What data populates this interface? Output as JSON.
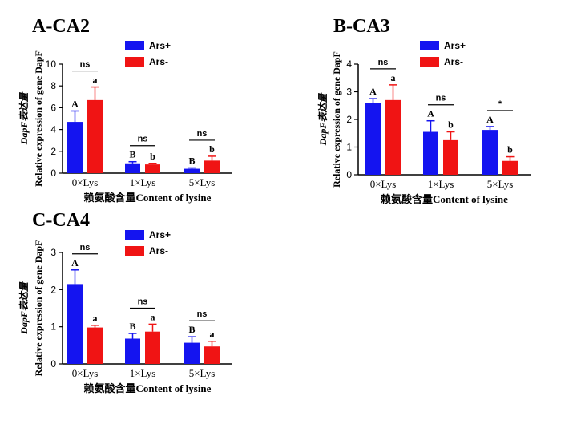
{
  "chart_data": [
    {
      "type": "bar",
      "panel_label": "A-CA2",
      "categories": [
        "0×Lys",
        "1×Lys",
        "5×Lys"
      ],
      "xlabel": "赖氨酸含量Content of lysine",
      "ylabel": "Relative expression of gene DapF",
      "ylabel2": "DapF表达量",
      "ylim": [
        0,
        10
      ],
      "yticks": [
        0,
        2,
        4,
        6,
        8,
        10
      ],
      "legend": "top-right",
      "series": [
        {
          "name": "Ars+",
          "color": "#1414f0",
          "values": [
            4.7,
            0.9,
            0.4
          ],
          "errors": [
            1.0,
            0.15,
            0.08
          ],
          "letters": [
            "A",
            "B",
            "B"
          ]
        },
        {
          "name": "Ars-",
          "color": "#f01414",
          "values": [
            6.7,
            0.8,
            1.15
          ],
          "errors": [
            1.2,
            0.1,
            0.4
          ],
          "letters": [
            "a",
            "b",
            "b"
          ]
        }
      ],
      "significance": [
        "ns",
        "ns",
        "ns"
      ]
    },
    {
      "type": "bar",
      "panel_label": "B-CA3",
      "categories": [
        "0×Lys",
        "1×Lys",
        "5×Lys"
      ],
      "xlabel": "赖氨酸含量Content of lysine",
      "ylabel": "Relative expression of gene DapF",
      "ylabel2": "DapF表达量",
      "ylim": [
        0,
        4
      ],
      "yticks": [
        0,
        1,
        2,
        3,
        4
      ],
      "legend": "top-right",
      "series": [
        {
          "name": "Ars+",
          "color": "#1414f0",
          "values": [
            2.6,
            1.55,
            1.62
          ],
          "errors": [
            0.15,
            0.4,
            0.12
          ],
          "letters": [
            "A",
            "A",
            "A"
          ]
        },
        {
          "name": "Ars-",
          "color": "#f01414",
          "values": [
            2.7,
            1.25,
            0.5
          ],
          "errors": [
            0.55,
            0.3,
            0.15
          ],
          "letters": [
            "a",
            "b",
            "b"
          ]
        }
      ],
      "significance": [
        "ns",
        "ns",
        "*"
      ]
    },
    {
      "type": "bar",
      "panel_label": "C-CA4",
      "categories": [
        "0×Lys",
        "1×Lys",
        "5×Lys"
      ],
      "xlabel": "赖氨酸含量Content of lysine",
      "ylabel": "Relative expression of gene DapF",
      "ylabel2": "DapF表达量",
      "ylim": [
        0,
        3
      ],
      "yticks": [
        0,
        1,
        2,
        3
      ],
      "legend": "top-right",
      "series": [
        {
          "name": "Ars+",
          "color": "#1414f0",
          "values": [
            2.15,
            0.68,
            0.57
          ],
          "errors": [
            0.38,
            0.14,
            0.16
          ],
          "letters": [
            "A",
            "B",
            "B"
          ]
        },
        {
          "name": "Ars-",
          "color": "#f01414",
          "values": [
            0.98,
            0.87,
            0.47
          ],
          "errors": [
            0.06,
            0.2,
            0.14
          ],
          "letters": [
            "a",
            "a",
            "a"
          ]
        }
      ],
      "significance": [
        "ns",
        "ns",
        "ns"
      ]
    }
  ]
}
